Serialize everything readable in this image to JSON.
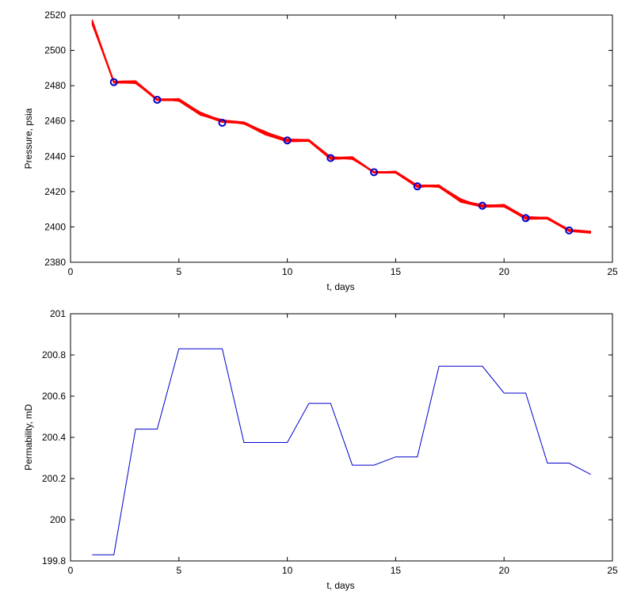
{
  "chart_data": [
    {
      "type": "line",
      "title": "",
      "xlabel": "t, days",
      "ylabel": "Pressure, psia",
      "xlim": [
        0,
        25
      ],
      "ylim": [
        2380,
        2520
      ],
      "xticks": [
        0,
        5,
        10,
        15,
        20,
        25
      ],
      "yticks": [
        2380,
        2400,
        2420,
        2440,
        2460,
        2480,
        2500,
        2520
      ],
      "grid": false,
      "legend": "none",
      "series": [
        {
          "style": "ensemble",
          "color": "#ff0000",
          "x": [
            1,
            2,
            3,
            4,
            5,
            6,
            7,
            8,
            9,
            10,
            11,
            12,
            13,
            14,
            15,
            16,
            17,
            18,
            19,
            20,
            21,
            22,
            23,
            24
          ],
          "values": [
            2516,
            2482,
            2482,
            2472,
            2472,
            2464,
            2460,
            2459,
            2453,
            2449,
            2449,
            2439,
            2439,
            2431,
            2431,
            2423,
            2423,
            2415,
            2412,
            2412,
            2405,
            2405,
            2398,
            2397
          ],
          "spread": [
            1.5,
            0.6,
            0.8,
            0.6,
            0.8,
            1.0,
            0.8,
            0.8,
            1.0,
            0.8,
            0.6,
            0.8,
            0.8,
            0.6,
            0.6,
            0.8,
            0.8,
            1.0,
            0.8,
            0.8,
            0.8,
            0.6,
            0.6,
            0.6
          ]
        },
        {
          "style": "observed-markers",
          "color": "#0000cc",
          "x": [
            2,
            4,
            7,
            10,
            12,
            14,
            16,
            19,
            21,
            23
          ],
          "values": [
            2482,
            2472,
            2459,
            2449,
            2439,
            2431,
            2423,
            2412,
            2405,
            2398
          ]
        }
      ]
    },
    {
      "type": "line",
      "title": "",
      "xlabel": "t, days",
      "ylabel": "Permability, mD",
      "xlim": [
        0,
        25
      ],
      "ylim": [
        199.8,
        201
      ],
      "xticks": [
        0,
        5,
        10,
        15,
        20,
        25
      ],
      "yticks": [
        199.8,
        200,
        200.2,
        200.4,
        200.6,
        200.8,
        201
      ],
      "grid": false,
      "legend": "none",
      "series": [
        {
          "color": "#0000cc",
          "x": [
            1,
            2,
            3,
            4,
            5,
            6,
            7,
            8,
            9,
            10,
            11,
            12,
            13,
            14,
            15,
            16,
            17,
            18,
            19,
            20,
            21,
            22,
            23,
            24
          ],
          "values": [
            199.83,
            199.83,
            200.44,
            200.44,
            200.83,
            200.83,
            200.83,
            200.375,
            200.375,
            200.375,
            200.565,
            200.565,
            200.265,
            200.265,
            200.305,
            200.305,
            200.745,
            200.745,
            200.745,
            200.615,
            200.615,
            200.275,
            200.275,
            200.22
          ]
        }
      ]
    }
  ]
}
